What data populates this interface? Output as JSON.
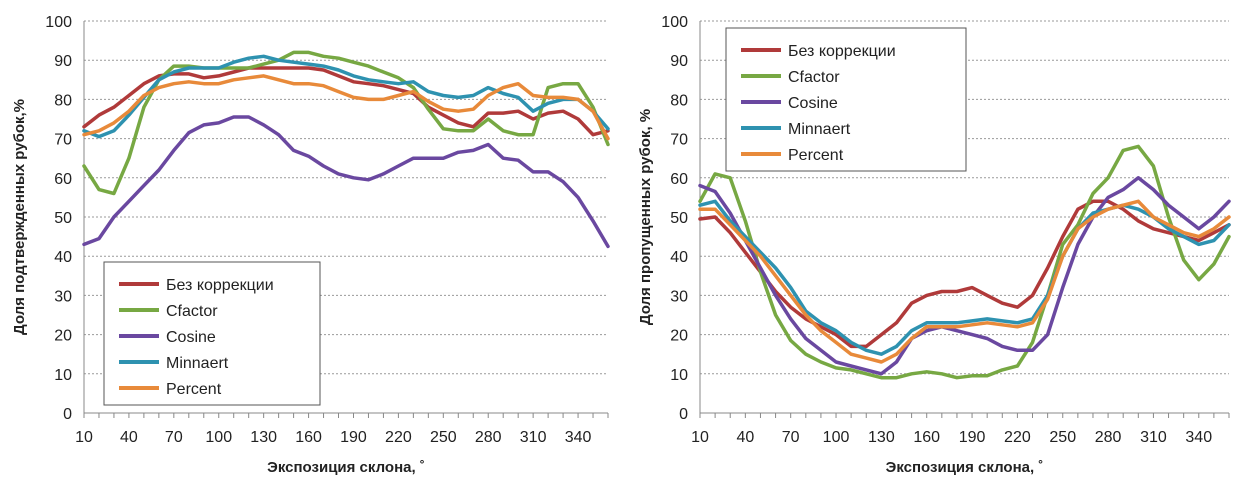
{
  "chart_data": [
    {
      "type": "line",
      "xlabel": "Экспозиция склона, ˚",
      "ylabel": "Доля подтвержденных рубок,%",
      "ylim": [
        0,
        100
      ],
      "yticks": [
        "0",
        "10",
        "20",
        "30",
        "40",
        "50",
        "60",
        "70",
        "80",
        "90",
        "100"
      ],
      "x": [
        10,
        20,
        30,
        40,
        50,
        60,
        70,
        80,
        90,
        100,
        110,
        120,
        130,
        140,
        150,
        160,
        170,
        180,
        190,
        200,
        210,
        220,
        230,
        240,
        250,
        260,
        270,
        280,
        290,
        300,
        310,
        320,
        330,
        340,
        350,
        360
      ],
      "xticks": [
        "10",
        "40",
        "70",
        "100",
        "130",
        "160",
        "190",
        "220",
        "250",
        "280",
        "310",
        "340"
      ],
      "grid": true,
      "legend_position": "bottom-left",
      "series": [
        {
          "name": "Без коррекции",
          "color": "#b03a3a",
          "values": [
            73,
            76,
            78,
            81,
            84,
            86,
            86.5,
            86.5,
            85.5,
            86,
            87,
            88,
            88,
            88,
            88,
            88,
            87.5,
            86,
            84.5,
            84,
            83.5,
            82.5,
            81.5,
            78,
            76,
            74,
            73,
            76.5,
            76.5,
            77,
            75,
            76.5,
            77,
            75,
            71,
            72
          ]
        },
        {
          "name": "Cfactor",
          "color": "#77a843",
          "values": [
            63,
            57,
            56,
            65,
            78,
            85,
            88.5,
            88.5,
            88,
            88,
            88,
            88,
            89,
            90,
            92,
            92,
            91,
            90.5,
            89.5,
            88.5,
            87,
            85.5,
            83,
            77.5,
            72.5,
            72,
            72,
            75,
            72,
            71,
            71,
            83,
            84,
            84,
            78,
            68.5
          ]
        },
        {
          "name": "Cosine",
          "color": "#6a48a0",
          "values": [
            43,
            44.5,
            50,
            54,
            58,
            62,
            67,
            71.5,
            73.5,
            74,
            75.5,
            75.5,
            73.5,
            71,
            67,
            65.5,
            63,
            61,
            60,
            59.5,
            61,
            63,
            65,
            65,
            65,
            66.5,
            67,
            68.5,
            65,
            64.5,
            61.5,
            61.5,
            59,
            55,
            49,
            42.5
          ]
        },
        {
          "name": "Minnaert",
          "color": "#2e92b0",
          "values": [
            72,
            70.5,
            72,
            76,
            80.5,
            85,
            87,
            88,
            88,
            88,
            89.5,
            90.5,
            91,
            90,
            89.5,
            89,
            88.5,
            87.5,
            86,
            85,
            84.5,
            84,
            84.5,
            82,
            81,
            80.5,
            81,
            83,
            81.5,
            80.5,
            77,
            79,
            80,
            80,
            77,
            72.5
          ]
        },
        {
          "name": "Percent",
          "color": "#e88a3a",
          "values": [
            71,
            72,
            74,
            77,
            81,
            83,
            84,
            84.5,
            84,
            84,
            85,
            85.5,
            86,
            85,
            84,
            84,
            83.5,
            82,
            80.5,
            80,
            80,
            81,
            82,
            79.5,
            77.5,
            77,
            77.5,
            81,
            83,
            84,
            81,
            80.5,
            80.5,
            80,
            77,
            70
          ]
        }
      ]
    },
    {
      "type": "line",
      "xlabel": "Экспозиция склона, ˚",
      "ylabel": "Доля пропущенных рубок, %",
      "ylim": [
        0,
        100
      ],
      "yticks": [
        "0",
        "10",
        "20",
        "30",
        "40",
        "50",
        "60",
        "70",
        "80",
        "90",
        "100"
      ],
      "x": [
        10,
        20,
        30,
        40,
        50,
        60,
        70,
        80,
        90,
        100,
        110,
        120,
        130,
        140,
        150,
        160,
        170,
        180,
        190,
        200,
        210,
        220,
        230,
        240,
        250,
        260,
        270,
        280,
        290,
        300,
        310,
        320,
        330,
        340,
        350,
        360
      ],
      "xticks": [
        "10",
        "40",
        "70",
        "100",
        "130",
        "160",
        "190",
        "220",
        "250",
        "280",
        "310",
        "340"
      ],
      "grid": true,
      "legend_position": "top-left",
      "series": [
        {
          "name": "Без коррекции",
          "color": "#b03a3a",
          "values": [
            49.5,
            50,
            46,
            41,
            36,
            31,
            27,
            24,
            22,
            20,
            17,
            17,
            20,
            23,
            28,
            30,
            31,
            31,
            32,
            30,
            28,
            27,
            30,
            37,
            45,
            52,
            54,
            54,
            52,
            49,
            47,
            46,
            45,
            44,
            46,
            48
          ]
        },
        {
          "name": "Cfactor",
          "color": "#77a843",
          "values": [
            54,
            61,
            60,
            49,
            36,
            25,
            18.5,
            15,
            13,
            11.5,
            11,
            10,
            9,
            9,
            10,
            10.5,
            10,
            9,
            9.5,
            9.5,
            11,
            12,
            18,
            30,
            43,
            48,
            56,
            60,
            67,
            68,
            63,
            50,
            39,
            34,
            38,
            45
          ]
        },
        {
          "name": "Cosine",
          "color": "#6a48a0",
          "values": [
            58,
            56.5,
            51,
            44,
            37,
            30,
            24,
            19,
            16,
            13,
            12,
            11,
            10,
            13,
            19,
            21,
            22,
            21,
            20,
            19,
            17,
            16,
            16,
            20,
            32,
            43,
            50,
            55,
            57,
            60,
            57,
            53,
            50,
            47,
            50,
            54
          ]
        },
        {
          "name": "Minnaert",
          "color": "#2e92b0",
          "values": [
            53,
            54,
            49,
            45,
            41,
            37,
            32,
            26,
            23,
            21,
            18,
            16,
            15,
            17,
            21,
            23,
            23,
            23,
            23.5,
            24,
            23.5,
            23,
            24,
            30,
            40,
            47,
            51,
            52,
            53,
            52,
            50,
            47,
            45,
            43,
            44,
            48
          ]
        },
        {
          "name": "Percent",
          "color": "#e88a3a",
          "values": [
            52,
            52,
            48,
            44,
            40,
            35,
            30,
            25,
            21,
            18,
            15,
            14,
            13,
            15,
            19,
            22,
            22,
            22,
            22.5,
            23,
            22.5,
            22,
            23,
            29,
            40,
            47,
            50,
            52,
            53,
            54,
            50,
            48,
            46,
            45,
            47,
            50
          ]
        }
      ]
    }
  ]
}
